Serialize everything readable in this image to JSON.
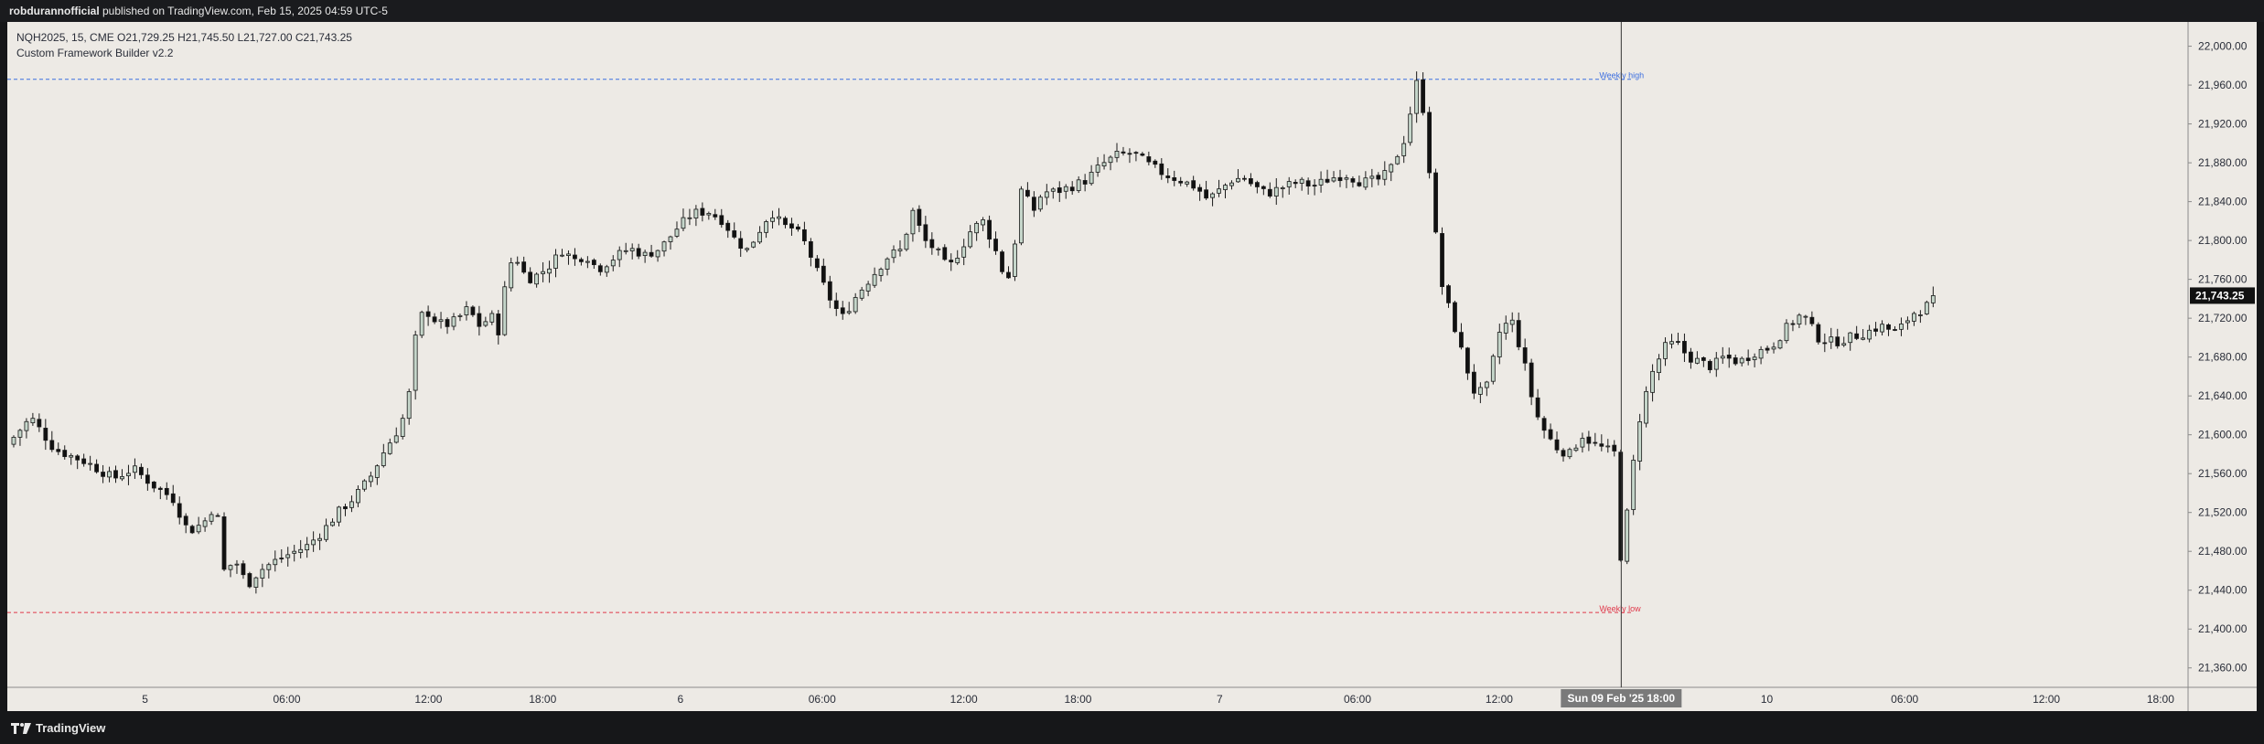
{
  "header": {
    "username": "robdurannofficial",
    "published_text": " published on TradingView.com, Feb 15, 2025 04:59 UTC-5"
  },
  "legend": {
    "ohlc_line": "NQH2025, 15, CME  O21,729.25  H21,745.50  L21,727.00  C21,743.25",
    "indicator": "Custom Framework Builder v2.2"
  },
  "footer": {
    "brand": "TradingView"
  },
  "colors": {
    "background": "#edeae5",
    "up_body": "#c5d6ca",
    "down_body": "#111111",
    "wick": "#1a1a1a",
    "weekly_high": "#3d6fe0",
    "weekly_low": "#e0394b",
    "price_badge": "#111111"
  },
  "chart_data": {
    "type": "candlestick",
    "symbol": "NQH2025",
    "interval": "15",
    "exchange": "CME",
    "ylim": [
      21340,
      22025
    ],
    "yticks": [
      "22,000.00",
      "21,960.00",
      "21,920.00",
      "21,880.00",
      "21,840.00",
      "21,800.00",
      "21,760.00",
      "21,720.00",
      "21,680.00",
      "21,640.00",
      "21,600.00",
      "21,560.00",
      "21,520.00",
      "21,480.00",
      "21,440.00",
      "21,400.00",
      "21,360.00"
    ],
    "xticks": [
      {
        "label": "5",
        "day": 0.35
      },
      {
        "label": "06:00",
        "day": 0.71
      },
      {
        "label": "12:00",
        "day": 1.07
      },
      {
        "label": "18:00",
        "day": 1.36
      },
      {
        "label": "6",
        "day": 1.71
      },
      {
        "label": "06:00",
        "day": 2.07
      },
      {
        "label": "12:00",
        "day": 2.43
      },
      {
        "label": "18:00",
        "day": 2.72
      },
      {
        "label": "7",
        "day": 3.08
      },
      {
        "label": "06:00",
        "day": 3.43
      },
      {
        "label": "12:00",
        "day": 3.79
      },
      {
        "label": "10",
        "day": 4.47
      },
      {
        "label": "06:00",
        "day": 4.82
      },
      {
        "label": "12:00",
        "day": 5.18
      },
      {
        "label": "18:00",
        "day": 5.47
      }
    ],
    "xrange_days": [
      0,
      5.54
    ],
    "crosshair": {
      "day": 4.1,
      "label": "Sun 09 Feb '25   18:00"
    },
    "last_price": "21,743.25",
    "last_value": 21743.25,
    "levels": [
      {
        "name": "Weekly high",
        "value": 21966
      },
      {
        "name": "Weekly low",
        "value": 21417
      }
    ],
    "path": [
      [
        0.0,
        21590
      ],
      [
        0.06,
        21618
      ],
      [
        0.12,
        21585
      ],
      [
        0.2,
        21572
      ],
      [
        0.27,
        21555
      ],
      [
        0.32,
        21565
      ],
      [
        0.38,
        21545
      ],
      [
        0.42,
        21535
      ],
      [
        0.46,
        21500
      ],
      [
        0.5,
        21510
      ],
      [
        0.53,
        21530
      ],
      [
        0.55,
        21460
      ],
      [
        0.58,
        21470
      ],
      [
        0.61,
        21445
      ],
      [
        0.64,
        21460
      ],
      [
        0.68,
        21470
      ],
      [
        0.72,
        21478
      ],
      [
        0.76,
        21485
      ],
      [
        0.8,
        21500
      ],
      [
        0.84,
        21520
      ],
      [
        0.88,
        21535
      ],
      [
        0.92,
        21555
      ],
      [
        0.96,
        21585
      ],
      [
        1.0,
        21610
      ],
      [
        1.02,
        21640
      ],
      [
        1.04,
        21710
      ],
      [
        1.06,
        21730
      ],
      [
        1.08,
        21720
      ],
      [
        1.11,
        21712
      ],
      [
        1.14,
        21718
      ],
      [
        1.17,
        21730
      ],
      [
        1.2,
        21712
      ],
      [
        1.23,
        21722
      ],
      [
        1.25,
        21705
      ],
      [
        1.27,
        21770
      ],
      [
        1.29,
        21785
      ],
      [
        1.32,
        21760
      ],
      [
        1.35,
        21765
      ],
      [
        1.38,
        21775
      ],
      [
        1.41,
        21790
      ],
      [
        1.44,
        21780
      ],
      [
        1.47,
        21785
      ],
      [
        1.5,
        21770
      ],
      [
        1.54,
        21782
      ],
      [
        1.58,
        21792
      ],
      [
        1.62,
        21785
      ],
      [
        1.66,
        21792
      ],
      [
        1.7,
        21812
      ],
      [
        1.74,
        21828
      ],
      [
        1.78,
        21830
      ],
      [
        1.82,
        21820
      ],
      [
        1.85,
        21800
      ],
      [
        1.88,
        21790
      ],
      [
        1.91,
        21810
      ],
      [
        1.94,
        21830
      ],
      [
        1.97,
        21815
      ],
      [
        2.0,
        21812
      ],
      [
        2.03,
        21795
      ],
      [
        2.06,
        21765
      ],
      [
        2.09,
        21740
      ],
      [
        2.12,
        21720
      ],
      [
        2.16,
        21745
      ],
      [
        2.2,
        21765
      ],
      [
        2.24,
        21785
      ],
      [
        2.27,
        21790
      ],
      [
        2.3,
        21830
      ],
      [
        2.33,
        21800
      ],
      [
        2.36,
        21790
      ],
      [
        2.39,
        21770
      ],
      [
        2.42,
        21790
      ],
      [
        2.45,
        21812
      ],
      [
        2.48,
        21820
      ],
      [
        2.51,
        21790
      ],
      [
        2.54,
        21755
      ],
      [
        2.56,
        21800
      ],
      [
        2.58,
        21865
      ],
      [
        2.6,
        21825
      ],
      [
        2.63,
        21850
      ],
      [
        2.66,
        21850
      ],
      [
        2.7,
        21855
      ],
      [
        2.74,
        21862
      ],
      [
        2.78,
        21878
      ],
      [
        2.82,
        21888
      ],
      [
        2.86,
        21890
      ],
      [
        2.9,
        21878
      ],
      [
        2.94,
        21868
      ],
      [
        2.98,
        21862
      ],
      [
        3.02,
        21855
      ],
      [
        3.05,
        21842
      ],
      [
        3.08,
        21852
      ],
      [
        3.11,
        21862
      ],
      [
        3.14,
        21865
      ],
      [
        3.17,
        21855
      ],
      [
        3.2,
        21848
      ],
      [
        3.24,
        21855
      ],
      [
        3.28,
        21860
      ],
      [
        3.32,
        21856
      ],
      [
        3.36,
        21864
      ],
      [
        3.4,
        21868
      ],
      [
        3.44,
        21860
      ],
      [
        3.48,
        21862
      ],
      [
        3.51,
        21870
      ],
      [
        3.55,
        21905
      ],
      [
        3.58,
        21962
      ],
      [
        3.6,
        21930
      ],
      [
        3.62,
        21840
      ],
      [
        3.64,
        21760
      ],
      [
        3.67,
        21720
      ],
      [
        3.7,
        21678
      ],
      [
        3.73,
        21640
      ],
      [
        3.76,
        21650
      ],
      [
        3.79,
        21705
      ],
      [
        3.82,
        21720
      ],
      [
        3.85,
        21680
      ],
      [
        3.88,
        21625
      ],
      [
        3.91,
        21600
      ],
      [
        3.94,
        21585
      ],
      [
        3.97,
        21580
      ],
      [
        4.0,
        21600
      ],
      [
        4.03,
        21590
      ],
      [
        4.06,
        21585
      ],
      [
        4.09,
        21580
      ],
      [
        4.1,
        21458
      ],
      [
        4.12,
        21540
      ],
      [
        4.15,
        21625
      ],
      [
        4.18,
        21665
      ],
      [
        4.21,
        21690
      ],
      [
        4.24,
        21695
      ],
      [
        4.27,
        21680
      ],
      [
        4.3,
        21675
      ],
      [
        4.33,
        21670
      ],
      [
        4.36,
        21680
      ],
      [
        4.4,
        21675
      ],
      [
        4.44,
        21685
      ],
      [
        4.48,
        21690
      ],
      [
        4.52,
        21710
      ],
      [
        4.56,
        21725
      ],
      [
        4.6,
        21700
      ],
      [
        4.64,
        21695
      ],
      [
        4.68,
        21700
      ],
      [
        4.72,
        21705
      ],
      [
        4.76,
        21712
      ],
      [
        4.8,
        21705
      ],
      [
        4.84,
        21725
      ],
      [
        4.87,
        21730
      ],
      [
        4.9,
        21743
      ]
    ]
  }
}
